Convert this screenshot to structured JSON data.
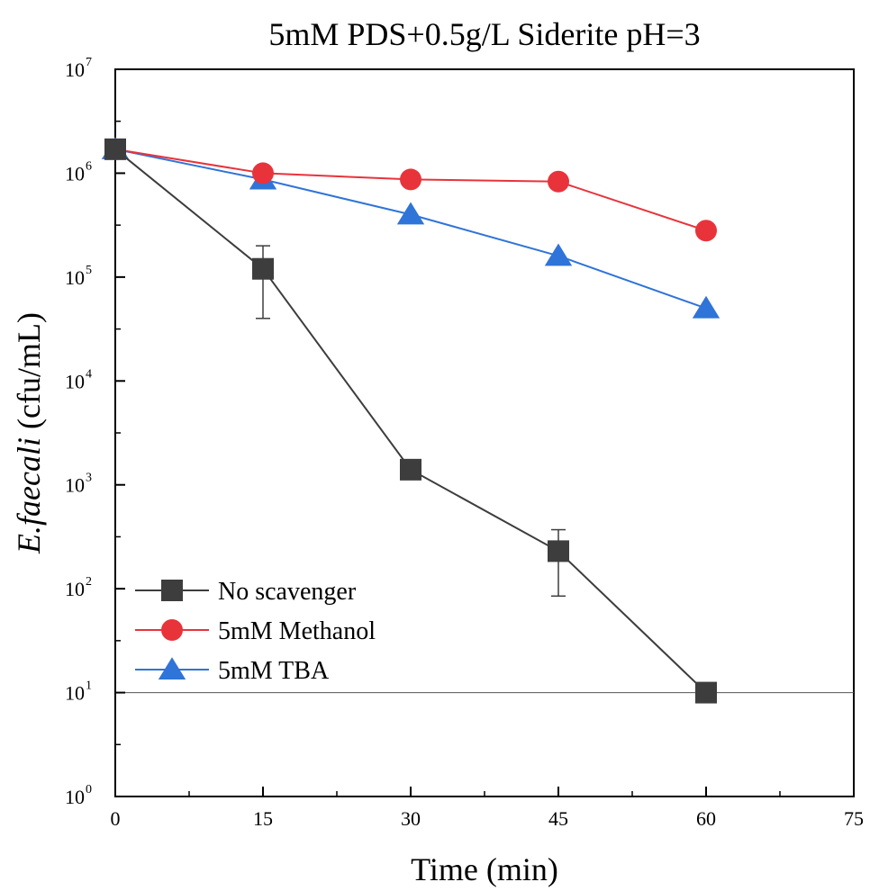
{
  "chart_data": {
    "type": "line",
    "title": "5mM PDS+0.5g/L Siderite  pH=3",
    "xlabel": "Time (min)",
    "ylabel": {
      "italic": "E.faecali",
      "rest": " (cfu/mL)"
    },
    "xlim": [
      0,
      75
    ],
    "ylim": [
      1,
      10000000
    ],
    "yscale": "log",
    "x_ticks": [
      "0",
      "15",
      "30",
      "45",
      "60",
      "75"
    ],
    "y_ticks": [
      {
        "base": "10",
        "exp": "0",
        "value": 1
      },
      {
        "base": "10",
        "exp": "1",
        "value": 10
      },
      {
        "base": "10",
        "exp": "2",
        "value": 100
      },
      {
        "base": "10",
        "exp": "3",
        "value": 1000
      },
      {
        "base": "10",
        "exp": "4",
        "value": 10000
      },
      {
        "base": "10",
        "exp": "5",
        "value": 100000
      },
      {
        "base": "10",
        "exp": "6",
        "value": 1000000
      },
      {
        "base": "10",
        "exp": "7",
        "value": 10000000
      }
    ],
    "reference_line": 10,
    "legend_position": "bottom-left",
    "series": [
      {
        "name": "No scavenger",
        "color": "#3d3d3d",
        "marker": "square",
        "x": [
          0,
          15,
          30,
          45,
          60
        ],
        "y": [
          1700000,
          120000,
          1400,
          230,
          10
        ],
        "error_low": [
          null,
          40000,
          null,
          85,
          null
        ],
        "error_high": [
          null,
          200000,
          null,
          370,
          null
        ]
      },
      {
        "name": "5mM Methanol",
        "color": "#e8333b",
        "marker": "circle",
        "x": [
          0,
          15,
          30,
          45,
          60
        ],
        "y": [
          1700000,
          1000000,
          870000,
          830000,
          280000
        ]
      },
      {
        "name": "5mM TBA",
        "color": "#2f74d8",
        "marker": "triangle",
        "x": [
          0,
          15,
          30,
          45,
          60
        ],
        "y": [
          1700000,
          870000,
          400000,
          160000,
          50000
        ]
      }
    ]
  }
}
